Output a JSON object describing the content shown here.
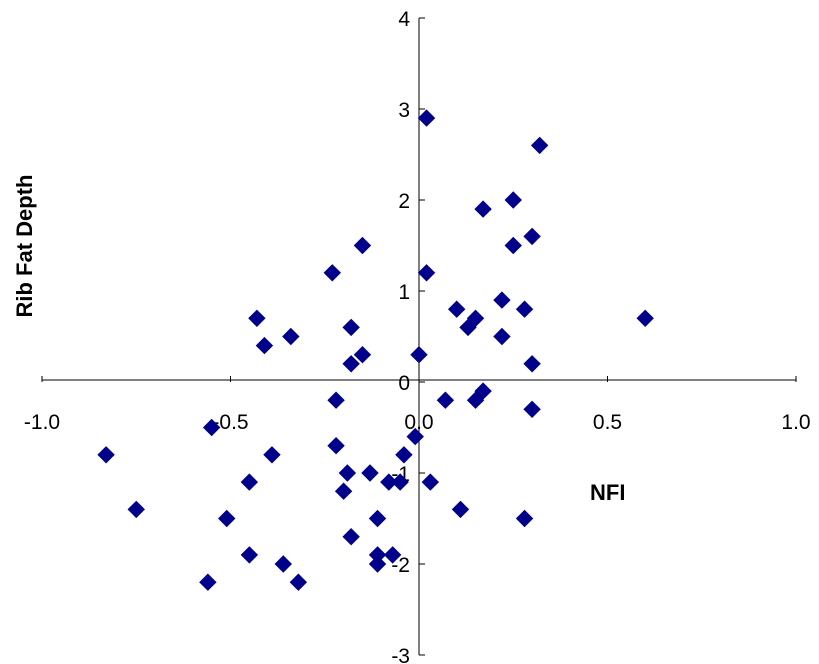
{
  "chart_data": {
    "type": "scatter",
    "title": "",
    "xlabel": "NFI",
    "ylabel": "Rib Fat Depth",
    "xlim": [
      -1.0,
      1.0
    ],
    "ylim": [
      -3,
      4
    ],
    "x_ticks": [
      "-1.0",
      "-0.5",
      "0.0",
      "0.5",
      "1.0"
    ],
    "y_ticks": [
      "-3",
      "-2",
      "-1",
      "0",
      "1",
      "2",
      "3",
      "4"
    ],
    "grid": false,
    "legend": "none",
    "marker": "diamond",
    "marker_color": "#00008B",
    "points": [
      {
        "x": 0.02,
        "y": 2.9
      },
      {
        "x": 0.32,
        "y": 2.6
      },
      {
        "x": 0.25,
        "y": 2.0
      },
      {
        "x": 0.17,
        "y": 1.9
      },
      {
        "x": 0.3,
        "y": 1.6
      },
      {
        "x": 0.25,
        "y": 1.5
      },
      {
        "x": -0.15,
        "y": 1.5
      },
      {
        "x": 0.02,
        "y": 1.2
      },
      {
        "x": -0.23,
        "y": 1.2
      },
      {
        "x": 0.22,
        "y": 0.9
      },
      {
        "x": 0.1,
        "y": 0.8
      },
      {
        "x": 0.28,
        "y": 0.8
      },
      {
        "x": 0.6,
        "y": 0.7
      },
      {
        "x": -0.43,
        "y": 0.7
      },
      {
        "x": 0.15,
        "y": 0.7
      },
      {
        "x": 0.13,
        "y": 0.6
      },
      {
        "x": -0.18,
        "y": 0.6
      },
      {
        "x": 0.22,
        "y": 0.5
      },
      {
        "x": -0.34,
        "y": 0.5
      },
      {
        "x": -0.41,
        "y": 0.4
      },
      {
        "x": 0.0,
        "y": 0.3
      },
      {
        "x": -0.15,
        "y": 0.3
      },
      {
        "x": -0.18,
        "y": 0.2
      },
      {
        "x": 0.3,
        "y": 0.2
      },
      {
        "x": 0.17,
        "y": -0.1
      },
      {
        "x": 0.15,
        "y": -0.2
      },
      {
        "x": 0.07,
        "y": -0.2
      },
      {
        "x": -0.22,
        "y": -0.2
      },
      {
        "x": 0.3,
        "y": -0.3
      },
      {
        "x": -0.55,
        "y": -0.5
      },
      {
        "x": -0.01,
        "y": -0.6
      },
      {
        "x": -0.22,
        "y": -0.7
      },
      {
        "x": -0.83,
        "y": -0.8
      },
      {
        "x": -0.39,
        "y": -0.8
      },
      {
        "x": -0.04,
        "y": -0.8
      },
      {
        "x": -0.19,
        "y": -1.0
      },
      {
        "x": -0.13,
        "y": -1.0
      },
      {
        "x": -0.45,
        "y": -1.1
      },
      {
        "x": -0.05,
        "y": -1.1
      },
      {
        "x": 0.03,
        "y": -1.1
      },
      {
        "x": -0.08,
        "y": -1.1
      },
      {
        "x": -0.2,
        "y": -1.2
      },
      {
        "x": -0.75,
        "y": -1.4
      },
      {
        "x": 0.11,
        "y": -1.4
      },
      {
        "x": -0.51,
        "y": -1.5
      },
      {
        "x": 0.28,
        "y": -1.5
      },
      {
        "x": -0.11,
        "y": -1.5
      },
      {
        "x": -0.18,
        "y": -1.7
      },
      {
        "x": -0.45,
        "y": -1.9
      },
      {
        "x": -0.11,
        "y": -1.9
      },
      {
        "x": -0.07,
        "y": -1.9
      },
      {
        "x": -0.36,
        "y": -2.0
      },
      {
        "x": -0.11,
        "y": -2.0
      },
      {
        "x": -0.56,
        "y": -2.2
      },
      {
        "x": -0.32,
        "y": -2.2
      }
    ]
  }
}
